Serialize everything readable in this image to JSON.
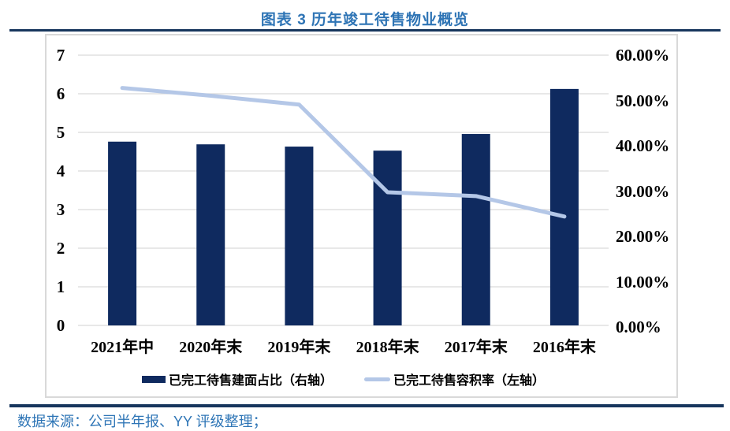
{
  "title": "图表 3 历年竣工待售物业概览",
  "source": {
    "text": "数据来源：公司半年报、YY 评级整理；"
  },
  "colors": {
    "bar": "#0f2a5f",
    "line": "#b4c7e7",
    "title": "#2e74b5",
    "rule": "#17365d",
    "grid": "#d9d9d9",
    "source_text": "#2e75b6"
  },
  "chart_data": {
    "type": "bar+line combo",
    "title": "图表 3 历年竣工待售物业概览",
    "categories": [
      "2021年中",
      "2020年末",
      "2019年末",
      "2018年末",
      "2017年末",
      "2016年末"
    ],
    "series": [
      {
        "name": "已完工待售建面占比（右轴）",
        "type": "bar",
        "axis": "right",
        "values_percent": [
          40.8,
          40.2,
          39.7,
          38.8,
          42.5,
          52.5
        ]
      },
      {
        "name": "已完工待售容积率（左轴）",
        "type": "line",
        "axis": "left",
        "values": [
          6.15,
          5.95,
          5.72,
          3.45,
          3.35,
          2.82
        ]
      }
    ],
    "left_axis": {
      "min": 0,
      "max": 7,
      "ticks": [
        "0",
        "1",
        "2",
        "3",
        "4",
        "5",
        "6",
        "7"
      ]
    },
    "right_axis": {
      "min": 0,
      "max": 60,
      "ticks": [
        "0.00%",
        "10.00%",
        "20.00%",
        "30.00%",
        "40.00%",
        "50.00%",
        "60.00%"
      ]
    },
    "grid": true,
    "legend_position": "bottom"
  }
}
